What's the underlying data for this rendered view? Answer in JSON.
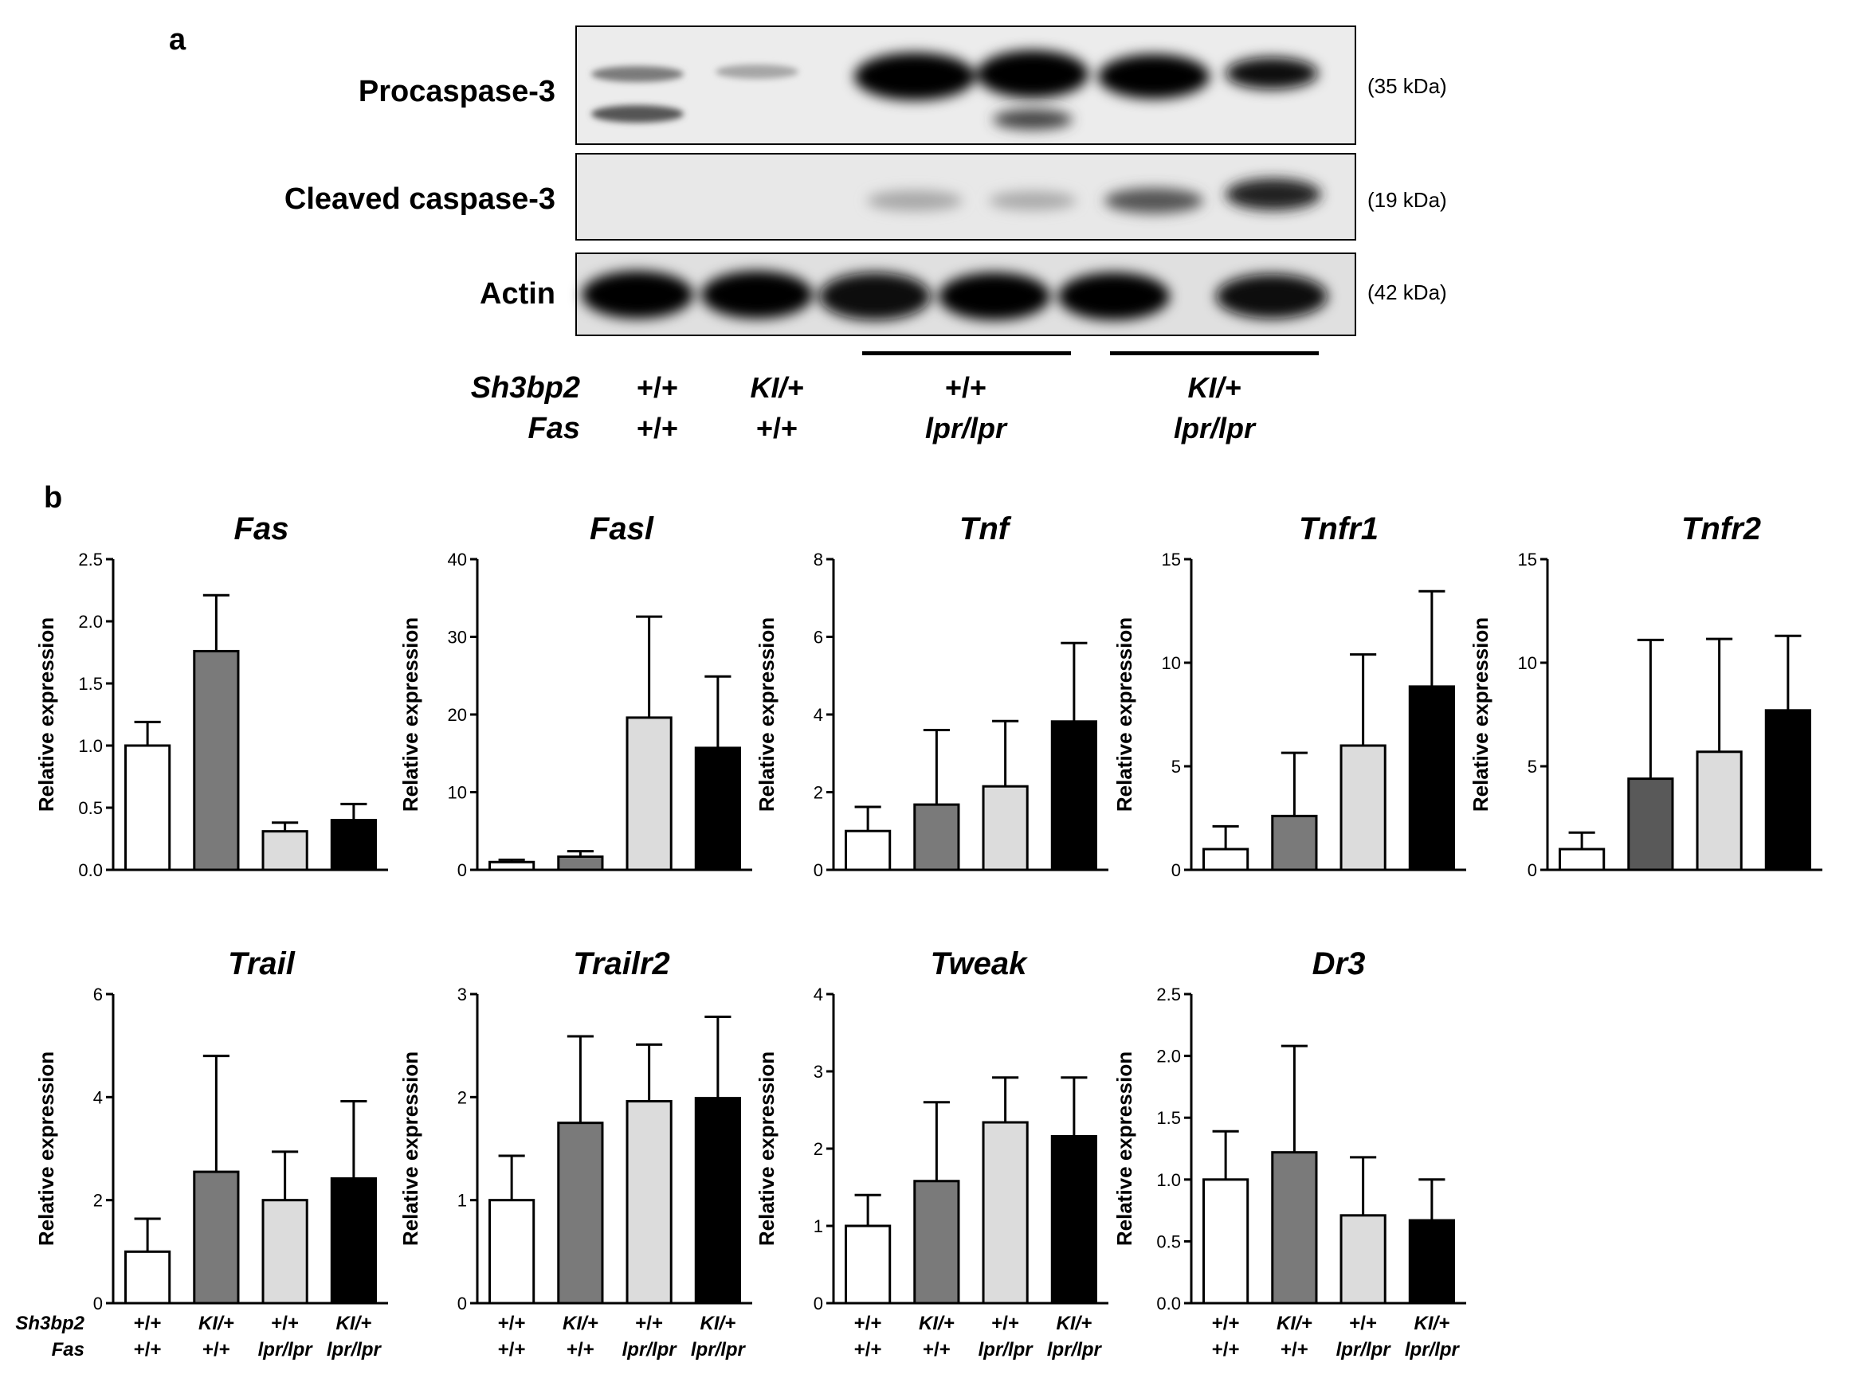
{
  "panel_a": {
    "letter": "a",
    "blots": [
      {
        "label": "Procaspase-3",
        "kda": "(35 kDa)"
      },
      {
        "label": "Cleaved caspase-3",
        "kda": "(19 kDa)"
      },
      {
        "label": "Actin",
        "kda": "(42 kDa)"
      }
    ],
    "genotype_row_labels": [
      "Sh3bp2",
      "Fas"
    ],
    "genotype_groups": [
      {
        "sh3bp2": "+/+",
        "fas": "+/+"
      },
      {
        "sh3bp2": "KI/+",
        "fas": "+/+"
      },
      {
        "sh3bp2": "+/+",
        "fas": "lpr/lpr"
      },
      {
        "sh3bp2": "KI/+",
        "fas": "lpr/lpr"
      }
    ]
  },
  "panel_b": {
    "letter": "b",
    "ylabel": "Relative expression",
    "genotype_row_labels": [
      "Sh3bp2",
      "Fas"
    ],
    "groups": [
      {
        "sh3bp2": "+/+",
        "fas": "+/+"
      },
      {
        "sh3bp2": "KI/+",
        "fas": "+/+"
      },
      {
        "sh3bp2": "+/+",
        "fas": "lpr/lpr"
      },
      {
        "sh3bp2": "KI/+",
        "fas": "lpr/lpr"
      }
    ]
  },
  "chart_data": [
    {
      "type": "bar",
      "title": "Fas",
      "ylabel": "Relative expression",
      "ylim": [
        0,
        2.5
      ],
      "ticks": [
        "0.0",
        "0.5",
        "1.0",
        "1.5",
        "2.0",
        "2.5"
      ],
      "values": [
        1.0,
        1.76,
        0.31,
        0.4
      ],
      "errors": [
        0.19,
        0.45,
        0.07,
        0.13
      ],
      "bar_colors": [
        "#ffffff",
        "#7a7a7a",
        "#dcdcdc",
        "#000000"
      ]
    },
    {
      "type": "bar",
      "title": "Fasl",
      "ylabel": "Relative expression",
      "ylim": [
        0,
        40
      ],
      "ticks": [
        "0",
        "10",
        "20",
        "30",
        "40"
      ],
      "values": [
        1.0,
        1.7,
        19.6,
        15.7
      ],
      "errors": [
        0.3,
        0.7,
        13.0,
        9.2
      ],
      "bar_colors": [
        "#ffffff",
        "#7a7a7a",
        "#dcdcdc",
        "#000000"
      ]
    },
    {
      "type": "bar",
      "title": "Tnf",
      "ylabel": "Relative expression",
      "ylim": [
        0,
        8
      ],
      "ticks": [
        "0",
        "2",
        "4",
        "6",
        "8"
      ],
      "values": [
        1.0,
        1.68,
        2.15,
        3.82
      ],
      "errors": [
        0.62,
        1.92,
        1.68,
        2.02
      ],
      "bar_colors": [
        "#ffffff",
        "#7a7a7a",
        "#dcdcdc",
        "#000000"
      ]
    },
    {
      "type": "bar",
      "title": "Tnfr1",
      "ylabel": "Relative expression",
      "ylim": [
        0,
        15
      ],
      "ticks": [
        "0",
        "5",
        "10",
        "15"
      ],
      "values": [
        1.0,
        2.6,
        6.0,
        8.85
      ],
      "errors": [
        1.1,
        3.05,
        4.4,
        4.6
      ],
      "bar_colors": [
        "#ffffff",
        "#7a7a7a",
        "#dcdcdc",
        "#000000"
      ]
    },
    {
      "type": "bar",
      "title": "Tnfr2",
      "ylabel": "Relative expression",
      "ylim": [
        0,
        15
      ],
      "ticks": [
        "0",
        "5",
        "10",
        "15"
      ],
      "values": [
        1.0,
        4.4,
        5.7,
        7.7
      ],
      "errors": [
        0.8,
        6.7,
        5.45,
        3.6
      ],
      "bar_colors": [
        "#ffffff",
        "#595959",
        "#dcdcdc",
        "#000000"
      ]
    },
    {
      "type": "bar",
      "title": "Trail",
      "ylabel": "Relative expression",
      "ylim": [
        0,
        6
      ],
      "ticks": [
        "0",
        "2",
        "4",
        "6"
      ],
      "values": [
        1.0,
        2.55,
        2.0,
        2.42
      ],
      "errors": [
        0.64,
        2.25,
        0.94,
        1.5
      ],
      "bar_colors": [
        "#ffffff",
        "#7a7a7a",
        "#dcdcdc",
        "#000000"
      ]
    },
    {
      "type": "bar",
      "title": "Trailr2",
      "ylabel": "Relative expression",
      "ylim": [
        0,
        3
      ],
      "ticks": [
        "0",
        "1",
        "2",
        "3"
      ],
      "values": [
        1.0,
        1.75,
        1.96,
        1.99
      ],
      "errors": [
        0.43,
        0.84,
        0.55,
        0.79
      ],
      "bar_colors": [
        "#ffffff",
        "#7a7a7a",
        "#dcdcdc",
        "#000000"
      ]
    },
    {
      "type": "bar",
      "title": "Tweak",
      "ylabel": "Relative expression",
      "ylim": [
        0,
        4
      ],
      "ticks": [
        "0",
        "1",
        "2",
        "3",
        "4"
      ],
      "values": [
        1.0,
        1.58,
        2.34,
        2.16
      ],
      "errors": [
        0.4,
        1.02,
        0.58,
        0.76
      ],
      "bar_colors": [
        "#ffffff",
        "#7a7a7a",
        "#dcdcdc",
        "#000000"
      ]
    },
    {
      "type": "bar",
      "title": "Dr3",
      "ylabel": "Relative expression",
      "ylim": [
        0,
        2.5
      ],
      "ticks": [
        "0.0",
        "0.5",
        "1.0",
        "1.5",
        "2.0",
        "2.5"
      ],
      "values": [
        1.0,
        1.22,
        0.71,
        0.67
      ],
      "errors": [
        0.39,
        0.86,
        0.47,
        0.33
      ],
      "bar_colors": [
        "#ffffff",
        "#7a7a7a",
        "#dcdcdc",
        "#000000"
      ]
    }
  ]
}
